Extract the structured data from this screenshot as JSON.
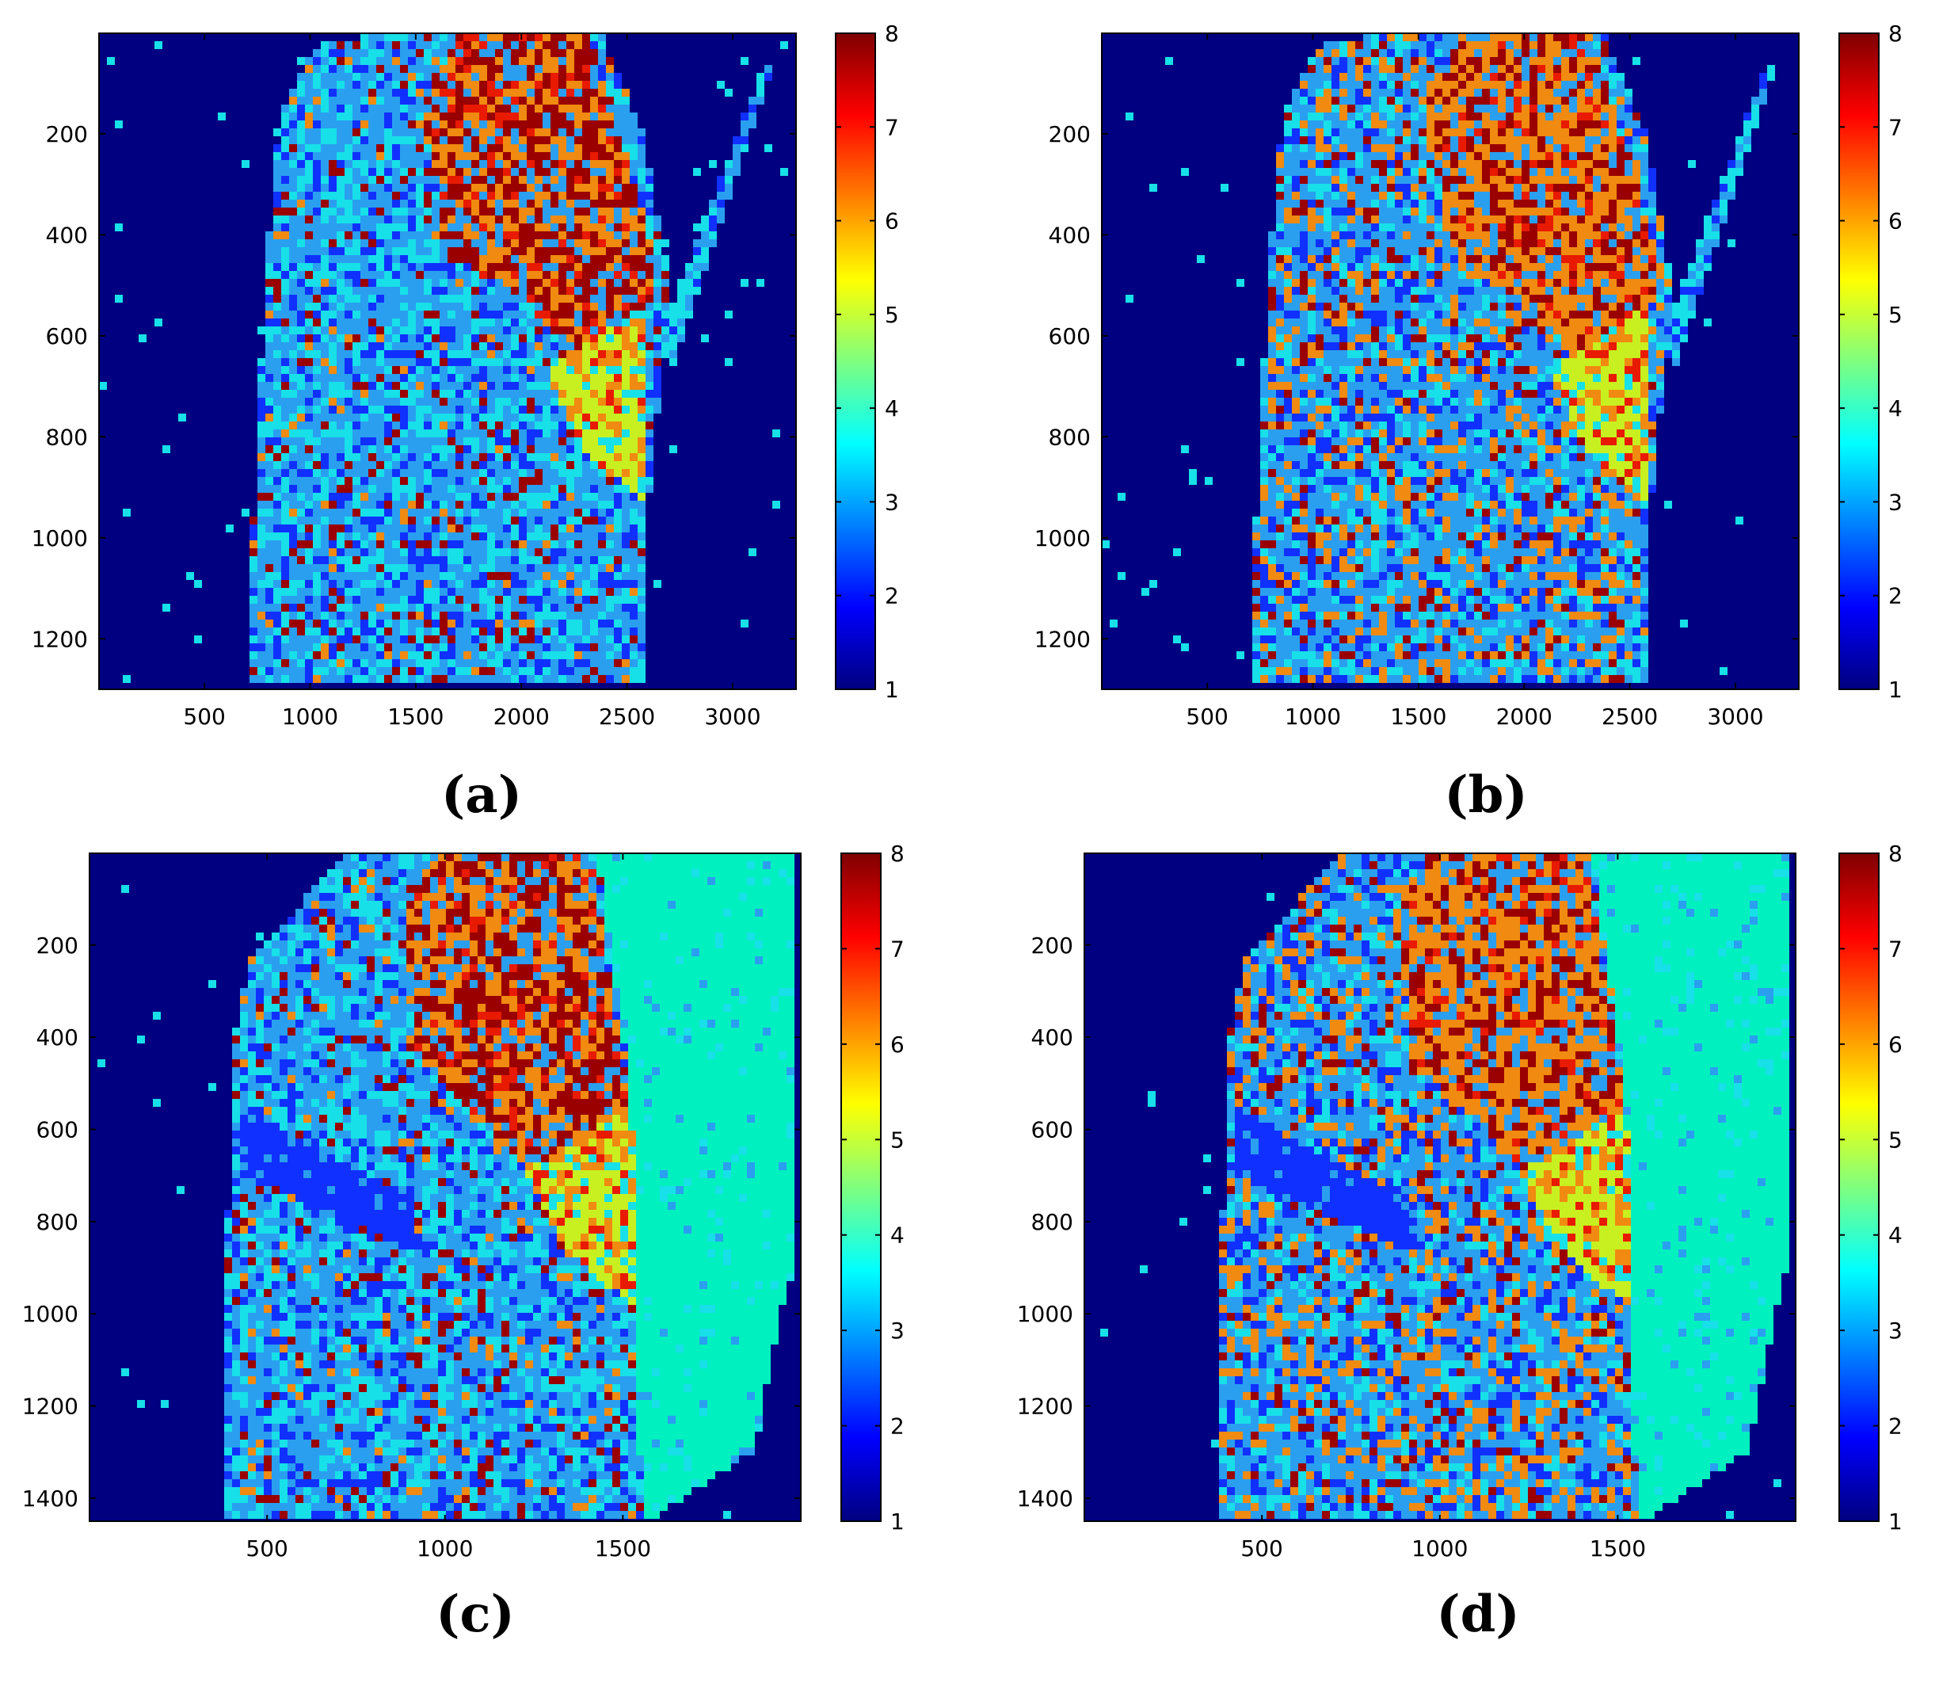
{
  "colormap": {
    "name": "jet",
    "stops": [
      "#00007f",
      "#0000ff",
      "#007fff",
      "#00ffff",
      "#7fff7f",
      "#ffff00",
      "#ff7f00",
      "#ff0000",
      "#7f0000"
    ]
  },
  "palette": {
    "background": "#000080",
    "water_c": "#00f0c0",
    "blue": "#1030ff",
    "light_blue": "#2a9ff0",
    "cyan": "#17e0e8",
    "yellow_green": "#c8f020",
    "orange": "#f08a10",
    "dark_red": "#9a0000",
    "red": "#e81a00",
    "brown": "#b04010"
  },
  "chart_data": [
    {
      "id": "a",
      "caption": "(a)",
      "type": "heatmap",
      "xlim": [
        1,
        3300
      ],
      "ylim": [
        1,
        1300
      ],
      "xticks": [
        "500",
        "1000",
        "1500",
        "2000",
        "2500",
        "3000"
      ],
      "yticks": [
        "200",
        "400",
        "600",
        "800",
        "1000",
        "1200"
      ],
      "colorbar": {
        "range": [
          1,
          8
        ],
        "ticks": [
          "1",
          "2",
          "3",
          "4",
          "5",
          "6",
          "7",
          "8"
        ]
      }
    },
    {
      "id": "b",
      "caption": "(b)",
      "type": "heatmap",
      "xlim": [
        1,
        3300
      ],
      "ylim": [
        1,
        1300
      ],
      "xticks": [
        "500",
        "1000",
        "1500",
        "2000",
        "2500",
        "3000"
      ],
      "yticks": [
        "200",
        "400",
        "600",
        "800",
        "1000",
        "1200"
      ],
      "colorbar": {
        "range": [
          1,
          8
        ],
        "ticks": [
          "1",
          "2",
          "3",
          "4",
          "5",
          "6",
          "7",
          "8"
        ]
      }
    },
    {
      "id": "c",
      "caption": "(c)",
      "type": "heatmap",
      "xlim": [
        1,
        2000
      ],
      "ylim": [
        1,
        1450
      ],
      "xticks": [
        "500",
        "1000",
        "1500"
      ],
      "yticks": [
        "200",
        "400",
        "600",
        "800",
        "1000",
        "1200",
        "1400"
      ],
      "colorbar": {
        "range": [
          1,
          8
        ],
        "ticks": [
          "1",
          "2",
          "3",
          "4",
          "5",
          "6",
          "7",
          "8"
        ]
      }
    },
    {
      "id": "d",
      "caption": "(d)",
      "type": "heatmap",
      "xlim": [
        1,
        2000
      ],
      "ylim": [
        1,
        1450
      ],
      "xticks": [
        "500",
        "1000",
        "1500"
      ],
      "yticks": [
        "200",
        "400",
        "600",
        "800",
        "1000",
        "1200",
        "1400"
      ],
      "colorbar": {
        "range": [
          1,
          8
        ],
        "ticks": [
          "1",
          "2",
          "3",
          "4",
          "5",
          "6",
          "7",
          "8"
        ]
      }
    }
  ]
}
